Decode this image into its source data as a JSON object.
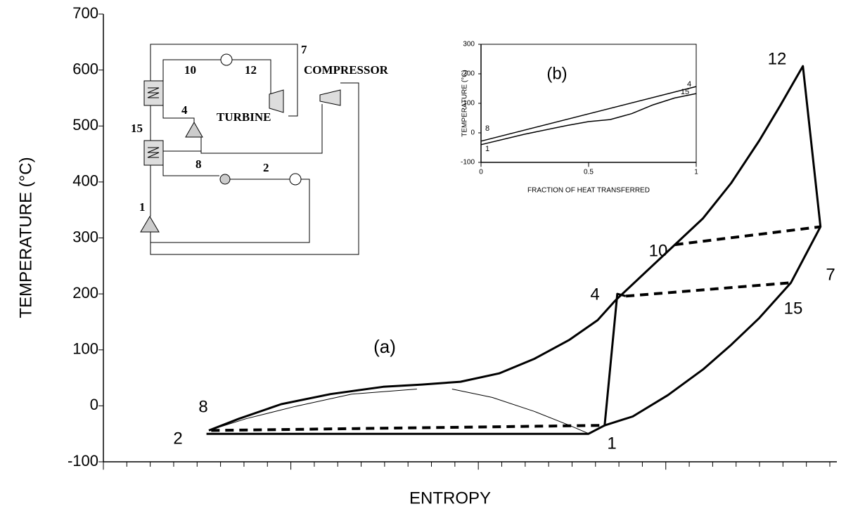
{
  "chart_data": [
    {
      "type": "line",
      "x_label": "ENTROPY",
      "y_label": "TEMPERATURE (°C)",
      "annotations": [
        "2",
        "8",
        "1",
        "4",
        "10",
        "7",
        "15",
        "12",
        "(a)"
      ],
      "xlim": [
        0,
        31.3
      ],
      "xticks": [
        0,
        1,
        2,
        3,
        4,
        5,
        6,
        7,
        8,
        9,
        10,
        11,
        12,
        13,
        14,
        15,
        16,
        17,
        18,
        19,
        20,
        21,
        22,
        23,
        24,
        25,
        26,
        27,
        28,
        29,
        30,
        31
      ],
      "ylim": [
        -100,
        700
      ],
      "yticks": [
        -100,
        0,
        100,
        200,
        300,
        400,
        500,
        600,
        700
      ],
      "series": [
        {
          "color": "#000000",
          "width": 3,
          "dash": false,
          "x": [
            4.5,
            5.79,
            7.59,
            9.69,
            11.94,
            13.59,
            15.24,
            16.89,
            18.39,
            19.89,
            21.09,
            21.84,
            23.19,
            24.39,
            25.59,
            26.79,
            27.99,
            28.89,
            29.85,
            30.6,
            29.34,
            27.99,
            26.79,
            25.59,
            24.09,
            22.59,
            21.39
          ],
          "values": [
            -44,
            -23,
            3,
            21,
            34,
            38,
            43,
            58,
            84,
            118,
            153,
            188,
            241,
            288,
            335,
            398,
            474,
            537,
            607,
            320,
            220,
            157,
            109,
            65,
            19,
            -19,
            -35
          ]
        },
        {
          "color": "#000000",
          "width": 3,
          "dash": false,
          "x": [
            4.4,
            20.7,
            21.39,
            21.93,
            22.29
          ],
          "values": [
            -50,
            -50,
            -35,
            200,
            196
          ]
        },
        {
          "color": "#000000",
          "width": 1,
          "dash": false,
          "x": [
            4.5,
            6.09,
            8.19,
            10.59,
            13.38
          ],
          "values": [
            -44,
            -23,
            -1,
            21,
            30
          ]
        },
        {
          "color": "#000000",
          "width": 1,
          "dash": false,
          "x": [
            14.88,
            16.59,
            18.39,
            19.89,
            20.73
          ],
          "values": [
            30,
            15,
            -10,
            -35,
            -50
          ]
        },
        {
          "color": "#000000",
          "width": 4,
          "dash": true,
          "x": [
            4.6,
            21.3
          ],
          "values": [
            -44,
            -35
          ]
        },
        {
          "color": "#000000",
          "width": 4,
          "dash": true,
          "x": [
            24.39,
            30.6
          ],
          "values": [
            288,
            320
          ]
        },
        {
          "color": "#000000",
          "width": 4,
          "dash": true,
          "x": [
            22.3,
            29.34
          ],
          "values": [
            196,
            220
          ]
        }
      ]
    },
    {
      "type": "line",
      "x_label": "FRACTION OF HEAT TRANSFERRED",
      "y_label": "TEMPERATURE (°C)",
      "annotations": [
        "8",
        "1",
        "4",
        "15",
        "(b)"
      ],
      "xlim": [
        0,
        1
      ],
      "xticks": [
        0,
        0.5,
        1
      ],
      "ylim": [
        -100,
        300
      ],
      "yticks": [
        -100,
        0,
        100,
        200,
        300
      ],
      "series": [
        {
          "color": "#000000",
          "width": 1.5,
          "dash": false,
          "x": [
            0,
            1
          ],
          "values": [
            -28,
            157
          ]
        },
        {
          "color": "#000000",
          "width": 1.5,
          "dash": false,
          "x": [
            0,
            0.2,
            0.4,
            0.5,
            0.6,
            0.7,
            0.8,
            0.9,
            1
          ],
          "values": [
            -40,
            -5,
            25,
            38,
            45,
            65,
            95,
            118,
            133
          ]
        }
      ]
    }
  ],
  "schematic": {
    "labels": [
      "7",
      "10",
      "12",
      "COMPRESSOR",
      "TURBINE",
      "4",
      "15",
      "8",
      "2",
      "1"
    ]
  }
}
